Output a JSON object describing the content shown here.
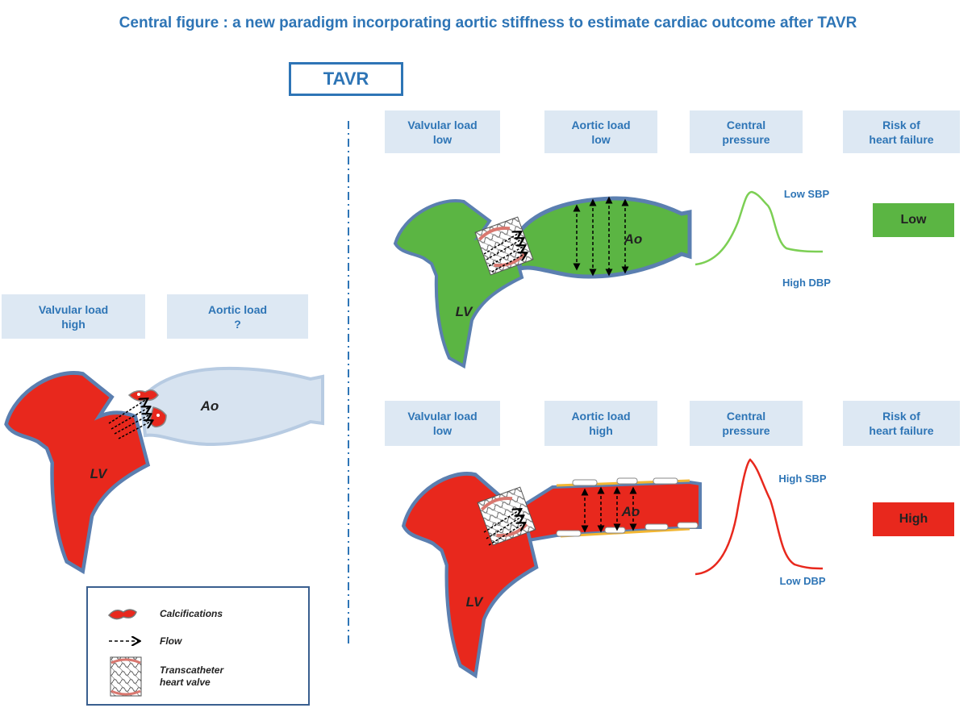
{
  "title": "Central figure : a new paradigm incorporating aortic stiffness to estimate cardiac outcome after TAVR",
  "tavr": "TAVR",
  "left": {
    "headers": [
      "Valvular load\nhigh",
      "Aortic load\n?"
    ],
    "lv": "LV",
    "ao": "Ao"
  },
  "top": {
    "headers": [
      "Valvular load\nlow",
      "Aortic load\nlow",
      "Central\npressure",
      "Risk of\nheart failure"
    ],
    "lv": "LV",
    "ao": "Ao",
    "sbp": "Low SBP",
    "dbp": "High DBP",
    "risk": "Low"
  },
  "bottom": {
    "headers": [
      "Valvular load\nlow",
      "Aortic load\nhigh",
      "Central\npressure",
      "Risk of\nheart failure"
    ],
    "lv": "LV",
    "ao": "Ao",
    "sbp": "High SBP",
    "dbp": "Low DBP",
    "risk": "High"
  },
  "legend": [
    "Calcifications",
    "Flow",
    "Transcatheter\nheart valve"
  ]
}
